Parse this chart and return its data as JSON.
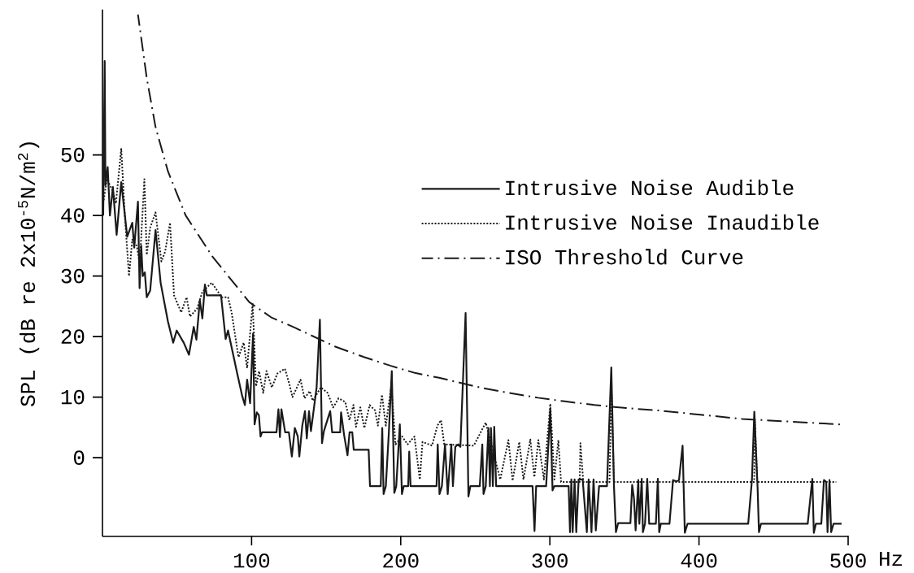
{
  "chart_data": {
    "type": "line",
    "xlabel": "Hz",
    "ylabel": "SPL (dB re 2x10$^{-5}$N/m$^{2}$)",
    "xlim": [
      0,
      500
    ],
    "ylim": [
      -13,
      74
    ],
    "xticks": [
      100,
      200,
      300,
      400,
      500
    ],
    "yticks": [
      0,
      10,
      20,
      30,
      40,
      50
    ],
    "legend": "top right",
    "series": [
      {
        "name": "Intrusive Noise Audible",
        "color": "#1a1a1a",
        "line_style": "solid",
        "x": [
          0.5,
          1.5,
          2,
          3.5,
          5,
          7,
          9.5,
          12.6,
          16.6,
          20,
          21.3,
          23.8,
          24.9,
          26,
          27,
          28.4,
          29.7,
          32,
          35.6,
          39,
          43.9,
          47.4,
          49.8,
          54.5,
          58,
          61.2,
          63,
          65.3,
          67,
          68.7,
          70,
          79.5,
          82.6,
          84.2,
          90,
          93.7,
          95.5,
          97,
          99,
          101,
          102,
          103.5,
          104.9,
          106,
          107,
          116.7,
          118,
          119,
          120,
          122.5,
          125,
          127,
          129,
          131,
          132,
          134,
          135.8,
          137,
          138.5,
          139.8,
          143.6,
          145.8,
          147.2,
          148.5,
          152.7,
          154,
          159.4,
          160,
          162,
          164.3,
          165.7,
          167.5,
          168.5,
          178.5,
          179.4,
          186.6,
          187.6,
          188.5,
          190,
          192,
          194,
          195.7,
          197,
          199.4,
          200.8,
          202,
          205,
          205.7,
          206.6,
          224,
          224.8,
          226,
          227.6,
          229.7,
          231.5,
          233.9,
          235,
          236.6,
          238.5,
          240,
          243.5,
          245.4,
          246.7,
          253,
          254.7,
          255.5,
          257,
          258.8,
          259.8,
          260.5,
          261.8,
          262.7,
          264,
          288.4,
          289.7,
          290.8,
          297.5,
          300.3,
          301.8,
          303,
          312.6,
          313.5,
          314.4,
          315.3,
          316.6,
          317.7,
          319.3,
          322,
          324.8,
          326,
          327.9,
          329.3,
          330.8,
          333,
          338.3,
          341.2,
          343,
          344.3,
          345.8,
          354,
          355.2,
          356.4,
          357.5,
          359.3,
          360,
          361.6,
          362.4,
          363.8,
          365.3,
          366.6,
          371.1,
          372.4,
          373.3,
          374.4,
          380.2,
          382.6,
          384.8,
          386.6,
          389,
          390.5,
          392.3,
          433,
          435.5,
          437.1,
          439.3,
          440.2,
          441.6,
          472.9,
          476,
          477,
          478.4,
          482,
          483.8,
          485.3,
          486.2,
          487.5,
          488.6,
          490.2,
          495.6
        ],
        "values": [
          40,
          65.5,
          45,
          48,
          40,
          44.7,
          36.8,
          45.5,
          36.5,
          38.8,
          34.7,
          42.3,
          28,
          35,
          30,
          30.6,
          26.5,
          27.6,
          37.6,
          28.9,
          22.5,
          19,
          21,
          19,
          17,
          21.6,
          19.5,
          26,
          23,
          28.6,
          26.8,
          26.8,
          19.6,
          21,
          14.3,
          10.2,
          8.7,
          12.9,
          9,
          20.5,
          5.5,
          7.5,
          7,
          3.5,
          4.2,
          4.2,
          8,
          3.4,
          8,
          4.2,
          4.2,
          0.2,
          4.9,
          3.5,
          0.2,
          5.3,
          7.7,
          3.2,
          7.7,
          4.4,
          11.6,
          22.8,
          2.4,
          4.4,
          7.7,
          4.2,
          4.2,
          7.5,
          3.8,
          0.4,
          4.2,
          4.2,
          1.3,
          1.3,
          -4.7,
          -4.7,
          4.9,
          -6,
          -4.7,
          4,
          14.3,
          -5.8,
          -4.7,
          5.5,
          -6,
          -4.7,
          -4.7,
          1,
          -4.7,
          -4.7,
          2.2,
          -6,
          -4.7,
          2.2,
          -6,
          2.2,
          -4.7,
          1.8,
          2.2,
          1.8,
          23.9,
          -6.4,
          -4.7,
          -4.7,
          2.2,
          -6,
          -4.7,
          4.9,
          -4.7,
          4.9,
          -4.7,
          5.1,
          -4.7,
          -4.7,
          -12.1,
          -4.7,
          -4.7,
          8,
          -5.4,
          -4.7,
          -4.7,
          -12.3,
          -3.6,
          -12.3,
          -3.6,
          -12.3,
          -3.6,
          -3.6,
          -12.3,
          -3.6,
          -12.3,
          -3.6,
          -12,
          -4.7,
          -4.7,
          14.9,
          -4.8,
          -12.3,
          -10.8,
          -10.8,
          -4.5,
          -6.7,
          -12,
          -3.7,
          -10.9,
          -3.5,
          -12.3,
          -10.9,
          -3.5,
          -10.9,
          -10.9,
          -3.5,
          -12.3,
          -10.9,
          -10.9,
          -3.7,
          -3.9,
          -3.7,
          2,
          -12.4,
          -10.9,
          -10.9,
          -3.7,
          7.6,
          -5,
          -12.3,
          -10.9,
          -10.9,
          -3.5,
          -12.4,
          -10.9,
          -10.9,
          -3.7,
          -4,
          -12.3,
          -3.7,
          -12.3,
          -10.9,
          -10.9
        ]
      },
      {
        "name": "Intrusive Noise Inaudible",
        "color": "#1a1a1a",
        "line_style": "dotted",
        "x": [
          0.5,
          3,
          7,
          9,
          12.6,
          15,
          17.8,
          20,
          23,
          25,
          28.1,
          29.7,
          32,
          35.6,
          39.5,
          42,
          45.3,
          48,
          52.8,
          56.4,
          58.7,
          63.4,
          67,
          73.3,
          80,
          84.2,
          86.6,
          91.2,
          94.7,
          97,
          100.7,
          103,
          105,
          107.8,
          110,
          113.6,
          117.3,
          122.3,
          125.5,
          127.4,
          132.8,
          135.5,
          139,
          141,
          146.4,
          151,
          154.7,
          158.3,
          162.8,
          165.6,
          168.3,
          170,
          172.9,
          175.6,
          179.2,
          182.8,
          184.7,
          187.4,
          190,
          193.7,
          196.5,
          201,
          204.6,
          209.2,
          212.8,
          214.6,
          221,
          224.6,
          227,
          229.2,
          249,
          257,
          261,
          266.7,
          272.2,
          275,
          279.5,
          282.3,
          286.9,
          289.6,
          292.3,
          296,
          300.3,
          303,
          305.7,
          307.5,
          320,
          320.5,
          322.4,
          340,
          341.2,
          343,
          437,
          437.5,
          439,
          492
        ],
        "values": [
          42,
          46,
          44,
          42,
          51,
          40,
          30,
          36,
          35,
          32,
          46,
          33.5,
          38,
          40.5,
          32.4,
          34,
          38.8,
          26.8,
          24,
          26.5,
          23.3,
          24.6,
          27.4,
          28.9,
          26.5,
          26.5,
          24,
          16.6,
          19,
          14.8,
          25.4,
          11.8,
          14.3,
          10.7,
          14.3,
          11.6,
          13.9,
          14.7,
          12,
          10,
          12.9,
          9.8,
          11,
          9.4,
          11.6,
          10.7,
          8.3,
          9.8,
          9.2,
          6.2,
          8.7,
          5.1,
          8.3,
          4.9,
          8.7,
          7.8,
          5.3,
          10.4,
          5.3,
          11.9,
          2.2,
          3.5,
          2.2,
          3.5,
          -3.6,
          2.6,
          2,
          5.3,
          6.2,
          2.2,
          2,
          5.8,
          2,
          -3.6,
          2.9,
          -3.8,
          2.6,
          -3.6,
          3,
          -3.2,
          2.9,
          -3.6,
          8.9,
          -3.6,
          2.9,
          -4,
          -4,
          2.4,
          -4,
          -4,
          12,
          -4,
          -4,
          6,
          -4,
          -4
        ]
      },
      {
        "name": "ISO Threshold Curve",
        "color": "#1a1a1a",
        "line_style": "dashdot",
        "x": [
          23.8,
          29.7,
          35.6,
          43.9,
          55.8,
          73.5,
          98.4,
          113,
          128.7,
          156.5,
          175.7,
          193,
          209.5,
          225.7,
          253,
          270.3,
          292,
          310,
          330,
          351,
          373,
          429,
          494.6
        ],
        "values": [
          73.2,
          62.7,
          54.6,
          47.3,
          40,
          33.3,
          25.7,
          23.2,
          21.5,
          18.3,
          16.6,
          15.2,
          14,
          13.2,
          11.6,
          10.8,
          9.9,
          9.3,
          8.7,
          8.2,
          7.8,
          6.4,
          5.5
        ]
      }
    ]
  }
}
